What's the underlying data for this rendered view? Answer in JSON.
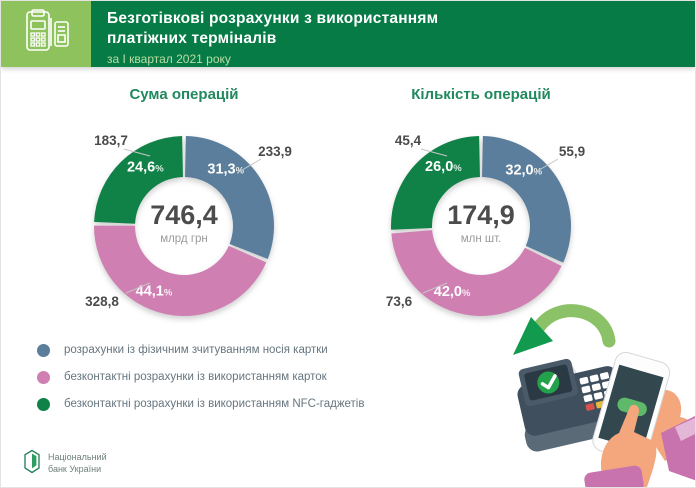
{
  "header": {
    "title_line1": "Безготівкові розрахунки з використанням",
    "title_line2": "платіжних терміналів",
    "subtitle": "за І квартал 2021 року"
  },
  "icons": {
    "header_icon": "pos-terminal-and-card-icon",
    "logo_icon": "nbu-emblem-icon",
    "illustration": "phone-tapping-pos-terminal-illustration"
  },
  "colors": {
    "header_green": "#077b46",
    "header_light_green": "#8ec25c",
    "chart_title_teal": "#21885f",
    "segment_blue": "#5b7e9c",
    "segment_pink": "#d07fb3",
    "segment_green": "#108247",
    "callout_gray": "#4b4b4b",
    "legend_text": "#66757e"
  },
  "chart_data": [
    {
      "type": "donut",
      "title": "Сума операцій",
      "center_value": "746,4",
      "center_unit": "млрд грн",
      "segments": [
        {
          "name": "physical-card-read",
          "label": "розрахунки із фізичним зчитуванням носія картки",
          "value": 233.9,
          "value_label": "233,9",
          "pct": 31.3,
          "pct_label": "31,3",
          "color": "#5b7e9c",
          "label_angle": 36
        },
        {
          "name": "contactless-cards",
          "label": "безконтактні розрахунки із використанням карток",
          "value": 328.8,
          "value_label": "328,8",
          "pct": 44.1,
          "pct_label": "44,1",
          "color": "#d07fb3",
          "label_angle": 205
        },
        {
          "name": "contactless-nfc-gadgets",
          "label": "безконтактні розрахунки із використанням NFC-гаджетів",
          "value": 183.7,
          "value_label": "183,7",
          "pct": 24.6,
          "pct_label": "24,6",
          "color": "#108247",
          "label_angle": 327
        }
      ]
    },
    {
      "type": "donut",
      "title": "Кількість операцій",
      "center_value": "174,9",
      "center_unit": "млн шт.",
      "segments": [
        {
          "name": "physical-card-read",
          "label": "розрахунки із фізичним зчитуванням носія картки",
          "value": 55.9,
          "value_label": "55,9",
          "pct": 32.0,
          "pct_label": "32,0",
          "color": "#5b7e9c",
          "label_angle": 37
        },
        {
          "name": "contactless-cards",
          "label": "безконтактні розрахунки із використанням карток",
          "value": 73.6,
          "value_label": "73,6",
          "pct": 42.0,
          "pct_label": "42,0",
          "color": "#d07fb3",
          "label_angle": 204
        },
        {
          "name": "contactless-nfc-gadgets",
          "label": "безконтактні розрахунки із використанням NFC-гаджетів",
          "value": 45.4,
          "value_label": "45,4",
          "pct": 26.0,
          "pct_label": "26,0",
          "color": "#108247",
          "label_angle": 328
        }
      ]
    }
  ],
  "legend": {
    "items": [
      {
        "color": "#5b7e9c",
        "label": "розрахунки із фізичним зчитуванням носія картки"
      },
      {
        "color": "#d07fb3",
        "label": "безконтактні розрахунки із використанням карток"
      },
      {
        "color": "#108247",
        "label": "безконтактні розрахунки із використанням NFC-гаджетів"
      }
    ]
  },
  "footer": {
    "logo_line1": "Національний",
    "logo_line2": "банк України"
  }
}
